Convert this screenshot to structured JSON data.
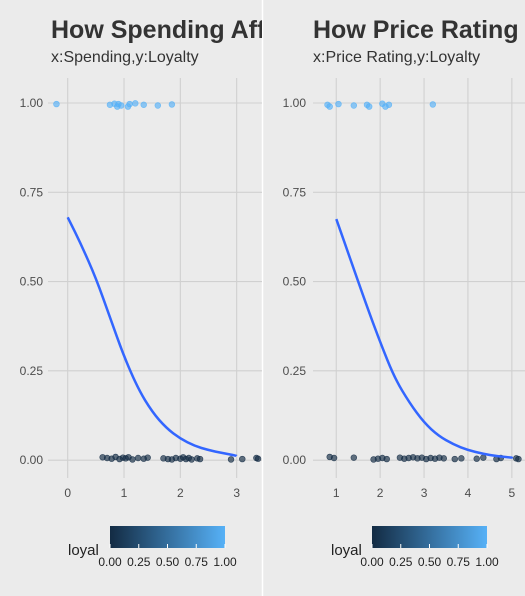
{
  "chart_data": [
    {
      "type": "scatter",
      "title": "How Spending Affects Loyalty",
      "subtitle": "x:Spending,y:Loyalty",
      "xlabel": "",
      "ylabel": "",
      "xlim": [
        -0.35,
        3.45
      ],
      "ylim": [
        -0.05,
        1.07
      ],
      "xticks": [
        0,
        1,
        2,
        3
      ],
      "yticks": [
        0.0,
        0.25,
        0.5,
        0.75,
        1.0
      ],
      "ytick_labels": [
        "0.00",
        "0.25",
        "0.50",
        "0.75",
        "1.00"
      ],
      "grid": true,
      "color_by": "loyal",
      "series": [
        {
          "name": "loyal",
          "points": [
            {
              "x": -0.2,
              "y": 0.997,
              "c": 1
            },
            {
              "x": 0.75,
              "y": 0.995,
              "c": 1
            },
            {
              "x": 0.83,
              "y": 0.998,
              "c": 1
            },
            {
              "x": 0.88,
              "y": 0.99,
              "c": 1
            },
            {
              "x": 0.9,
              "y": 0.997,
              "c": 1
            },
            {
              "x": 0.95,
              "y": 0.993,
              "c": 1
            },
            {
              "x": 1.1,
              "y": 0.997,
              "c": 1
            },
            {
              "x": 1.07,
              "y": 0.99,
              "c": 1
            },
            {
              "x": 1.2,
              "y": 0.999,
              "c": 1
            },
            {
              "x": 1.35,
              "y": 0.995,
              "c": 1
            },
            {
              "x": 1.6,
              "y": 0.993,
              "c": 1
            },
            {
              "x": 1.85,
              "y": 0.996,
              "c": 1
            },
            {
              "x": 0.62,
              "y": 0.008,
              "c": 0
            },
            {
              "x": 0.7,
              "y": 0.006,
              "c": 0
            },
            {
              "x": 0.78,
              "y": 0.004,
              "c": 0
            },
            {
              "x": 0.85,
              "y": 0.009,
              "c": 0
            },
            {
              "x": 0.92,
              "y": 0.003,
              "c": 0
            },
            {
              "x": 0.98,
              "y": 0.007,
              "c": 0
            },
            {
              "x": 1.03,
              "y": 0.005,
              "c": 0
            },
            {
              "x": 1.08,
              "y": 0.008,
              "c": 0
            },
            {
              "x": 1.15,
              "y": 0.002,
              "c": 0
            },
            {
              "x": 1.25,
              "y": 0.006,
              "c": 0
            },
            {
              "x": 1.35,
              "y": 0.004,
              "c": 0
            },
            {
              "x": 1.42,
              "y": 0.007,
              "c": 0
            },
            {
              "x": 1.7,
              "y": 0.005,
              "c": 0
            },
            {
              "x": 1.78,
              "y": 0.003,
              "c": 0
            },
            {
              "x": 1.85,
              "y": 0.002,
              "c": 0
            },
            {
              "x": 1.92,
              "y": 0.006,
              "c": 0
            },
            {
              "x": 2.0,
              "y": 0.004,
              "c": 0
            },
            {
              "x": 2.05,
              "y": 0.008,
              "c": 0
            },
            {
              "x": 2.1,
              "y": 0.003,
              "c": 0
            },
            {
              "x": 2.15,
              "y": 0.006,
              "c": 0
            },
            {
              "x": 2.2,
              "y": 0.002,
              "c": 0
            },
            {
              "x": 2.3,
              "y": 0.005,
              "c": 0
            },
            {
              "x": 2.35,
              "y": 0.003,
              "c": 0
            },
            {
              "x": 2.9,
              "y": 0.002,
              "c": 0
            },
            {
              "x": 3.1,
              "y": 0.003,
              "c": 0
            },
            {
              "x": 3.35,
              "y": 0.006,
              "c": 0
            },
            {
              "x": 3.38,
              "y": 0.004,
              "c": 0
            }
          ]
        },
        {
          "type": "line",
          "x": [
            0,
            0.25,
            0.5,
            0.75,
            1.0,
            1.25,
            1.5,
            1.75,
            2.0,
            2.25,
            2.5,
            2.75,
            3.0
          ],
          "y": [
            0.68,
            0.6,
            0.51,
            0.4,
            0.29,
            0.2,
            0.135,
            0.09,
            0.06,
            0.04,
            0.028,
            0.02,
            0.012
          ]
        }
      ]
    },
    {
      "type": "scatter",
      "title": "How Price Rating Affects Loyalty",
      "subtitle": "x:Price Rating,y:Loyalty",
      "xlabel": "",
      "ylabel": "",
      "xlim": [
        0.47,
        5.3
      ],
      "ylim": [
        -0.05,
        1.07
      ],
      "xticks": [
        1,
        2,
        3,
        4,
        5
      ],
      "yticks": [
        0.0,
        0.25,
        0.5,
        0.75,
        1.0
      ],
      "ytick_labels": [
        "0.00",
        "0.25",
        "0.50",
        "0.75",
        "1.00"
      ],
      "grid": true,
      "color_by": "loyal",
      "series": [
        {
          "name": "loyal",
          "points": [
            {
              "x": 0.8,
              "y": 0.995,
              "c": 1
            },
            {
              "x": 0.85,
              "y": 0.99,
              "c": 1
            },
            {
              "x": 1.05,
              "y": 0.997,
              "c": 1
            },
            {
              "x": 1.4,
              "y": 0.993,
              "c": 1
            },
            {
              "x": 1.7,
              "y": 0.995,
              "c": 1
            },
            {
              "x": 1.75,
              "y": 0.99,
              "c": 1
            },
            {
              "x": 2.05,
              "y": 0.998,
              "c": 1
            },
            {
              "x": 2.12,
              "y": 0.99,
              "c": 1
            },
            {
              "x": 2.2,
              "y": 0.995,
              "c": 1
            },
            {
              "x": 3.2,
              "y": 0.996,
              "c": 1
            },
            {
              "x": 0.85,
              "y": 0.009,
              "c": 0
            },
            {
              "x": 0.95,
              "y": 0.006,
              "c": 0
            },
            {
              "x": 1.4,
              "y": 0.007,
              "c": 0
            },
            {
              "x": 1.85,
              "y": 0.002,
              "c": 0
            },
            {
              "x": 1.95,
              "y": 0.004,
              "c": 0
            },
            {
              "x": 2.05,
              "y": 0.006,
              "c": 0
            },
            {
              "x": 2.15,
              "y": 0.003,
              "c": 0
            },
            {
              "x": 2.45,
              "y": 0.007,
              "c": 0
            },
            {
              "x": 2.55,
              "y": 0.004,
              "c": 0
            },
            {
              "x": 2.65,
              "y": 0.006,
              "c": 0
            },
            {
              "x": 2.75,
              "y": 0.008,
              "c": 0
            },
            {
              "x": 2.85,
              "y": 0.005,
              "c": 0
            },
            {
              "x": 2.95,
              "y": 0.007,
              "c": 0
            },
            {
              "x": 3.05,
              "y": 0.003,
              "c": 0
            },
            {
              "x": 3.15,
              "y": 0.006,
              "c": 0
            },
            {
              "x": 3.25,
              "y": 0.004,
              "c": 0
            },
            {
              "x": 3.35,
              "y": 0.007,
              "c": 0
            },
            {
              "x": 3.45,
              "y": 0.005,
              "c": 0
            },
            {
              "x": 3.7,
              "y": 0.003,
              "c": 0
            },
            {
              "x": 3.85,
              "y": 0.005,
              "c": 0
            },
            {
              "x": 4.2,
              "y": 0.004,
              "c": 0
            },
            {
              "x": 4.35,
              "y": 0.007,
              "c": 0
            },
            {
              "x": 4.65,
              "y": 0.003,
              "c": 0
            },
            {
              "x": 4.75,
              "y": 0.006,
              "c": 0
            },
            {
              "x": 5.1,
              "y": 0.005,
              "c": 0
            },
            {
              "x": 5.15,
              "y": 0.003,
              "c": 0
            }
          ]
        },
        {
          "type": "line",
          "x": [
            1.0,
            1.33,
            1.67,
            2.0,
            2.33,
            2.67,
            3.0,
            3.33,
            3.67,
            4.0,
            4.33,
            4.67,
            5.0
          ],
          "y": [
            0.675,
            0.56,
            0.44,
            0.33,
            0.23,
            0.16,
            0.105,
            0.068,
            0.044,
            0.028,
            0.018,
            0.011,
            0.007
          ]
        }
      ]
    }
  ],
  "legend": {
    "title": "loyal",
    "ticks": [
      "0.00",
      "0.25",
      "0.50",
      "0.75",
      "1.00"
    ],
    "low_color": "#132B43",
    "high_color": "#56B1F7"
  },
  "colors": {
    "fit_line": "#3366FF",
    "grid": "#d0d0d0",
    "panel_bg": "#ebebeb",
    "divider": "#ffffff"
  }
}
